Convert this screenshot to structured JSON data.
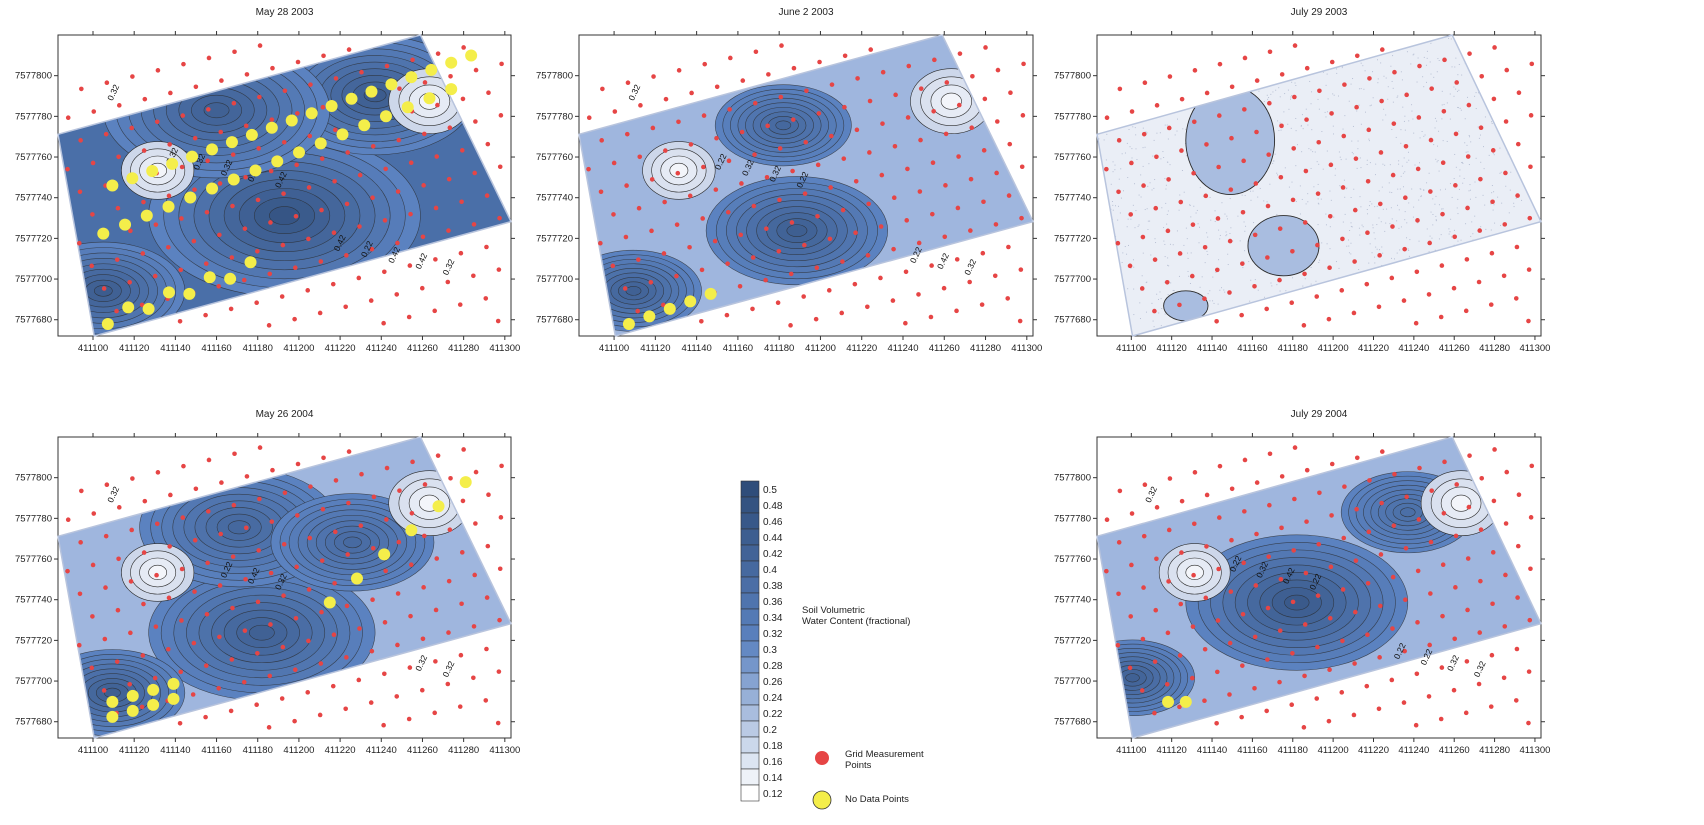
{
  "colors": {
    "high_moisture": "#2f4d7a",
    "mid_moisture": "#5b82c0",
    "low_moisture": "#cdd7ea",
    "grid_point": "#e64545",
    "no_data_point": "#f4ee4a",
    "contour": "#2a2a2a"
  },
  "chart_data": [
    {
      "type": "heatmap",
      "title": "May 28 2003",
      "x_ticks": [
        411100,
        411120,
        411140,
        411160,
        411180,
        411200,
        411220,
        411240,
        411260,
        411280,
        411300
      ],
      "y_ticks": [
        7577680,
        7577700,
        7577720,
        7577740,
        7577760,
        7577780,
        7577800
      ],
      "xlim": [
        411083,
        411303
      ],
      "ylim": [
        7577672,
        7577820
      ],
      "contour_labels": [
        "0.32",
        "0.42",
        "0.32",
        "0.32",
        "0.42",
        "0.32",
        "0.42",
        "0.32",
        "0.22",
        "0.32",
        "0.42"
      ],
      "no_data_points_count": 44
    },
    {
      "type": "heatmap",
      "title": "June 2 2003",
      "x_ticks": [
        411100,
        411120,
        411140,
        411160,
        411180,
        411200,
        411220,
        411240,
        411260,
        411280,
        411300
      ],
      "y_ticks": [
        7577680,
        7577700,
        7577720,
        7577740,
        7577760,
        7577780,
        7577800
      ],
      "xlim": [
        411083,
        411303
      ],
      "ylim": [
        7577672,
        7577820
      ],
      "contour_labels": [
        "0.32",
        "0.22",
        "0.32",
        "0.32",
        "0.42",
        "0.32",
        "0.22",
        "0.22"
      ],
      "no_data_points_count": 5
    },
    {
      "type": "heatmap",
      "title": "July 29 2003",
      "x_ticks": [
        411100,
        411120,
        411140,
        411160,
        411180,
        411200,
        411220,
        411240,
        411260,
        411280,
        411300
      ],
      "y_ticks": [
        7577680,
        7577700,
        7577720,
        7577740,
        7577760,
        7577780,
        7577800
      ],
      "xlim": [
        411083,
        411303
      ],
      "ylim": [
        7577672,
        7577820
      ],
      "contour_labels": [],
      "no_data_points_count": 0
    },
    {
      "type": "heatmap",
      "title": "May 26 2004",
      "x_ticks": [
        411100,
        411120,
        411140,
        411160,
        411180,
        411200,
        411220,
        411240,
        411260,
        411280,
        411300
      ],
      "y_ticks": [
        7577680,
        7577700,
        7577720,
        7577740,
        7577760,
        7577780,
        7577800
      ],
      "xlim": [
        411083,
        411303
      ],
      "ylim": [
        7577672,
        7577820
      ],
      "contour_labels": [
        "0.32",
        "0.32",
        "0.32",
        "0.42",
        "0.32",
        "0.22"
      ],
      "no_data_points_count": 14
    },
    {
      "type": "heatmap",
      "title": "July 29 2004",
      "x_ticks": [
        411100,
        411120,
        411140,
        411160,
        411180,
        411200,
        411220,
        411240,
        411260,
        411280,
        411300
      ],
      "y_ticks": [
        7577680,
        7577700,
        7577720,
        7577740,
        7577760,
        7577780,
        7577800
      ],
      "xlim": [
        411083,
        411303
      ],
      "ylim": [
        7577672,
        7577820
      ],
      "contour_labels": [
        "0.32",
        "0.22",
        "0.32",
        "0.42",
        "0.32",
        "0.32",
        "0.22",
        "0.22",
        "0.22"
      ],
      "no_data_points_count": 2
    }
  ],
  "legend": {
    "colorbar_title": "Soil Volumetric Water Content (fractional)",
    "colorbar_ticks": [
      "0.5",
      "0.48",
      "0.46",
      "0.44",
      "0.42",
      "0.4",
      "0.38",
      "0.36",
      "0.34",
      "0.32",
      "0.3",
      "0.28",
      "0.26",
      "0.24",
      "0.22",
      "0.2",
      "0.18",
      "0.16",
      "0.14",
      "0.12"
    ],
    "grid_points_label": "Grid Measurement Points",
    "no_data_label": "No Data Points"
  }
}
